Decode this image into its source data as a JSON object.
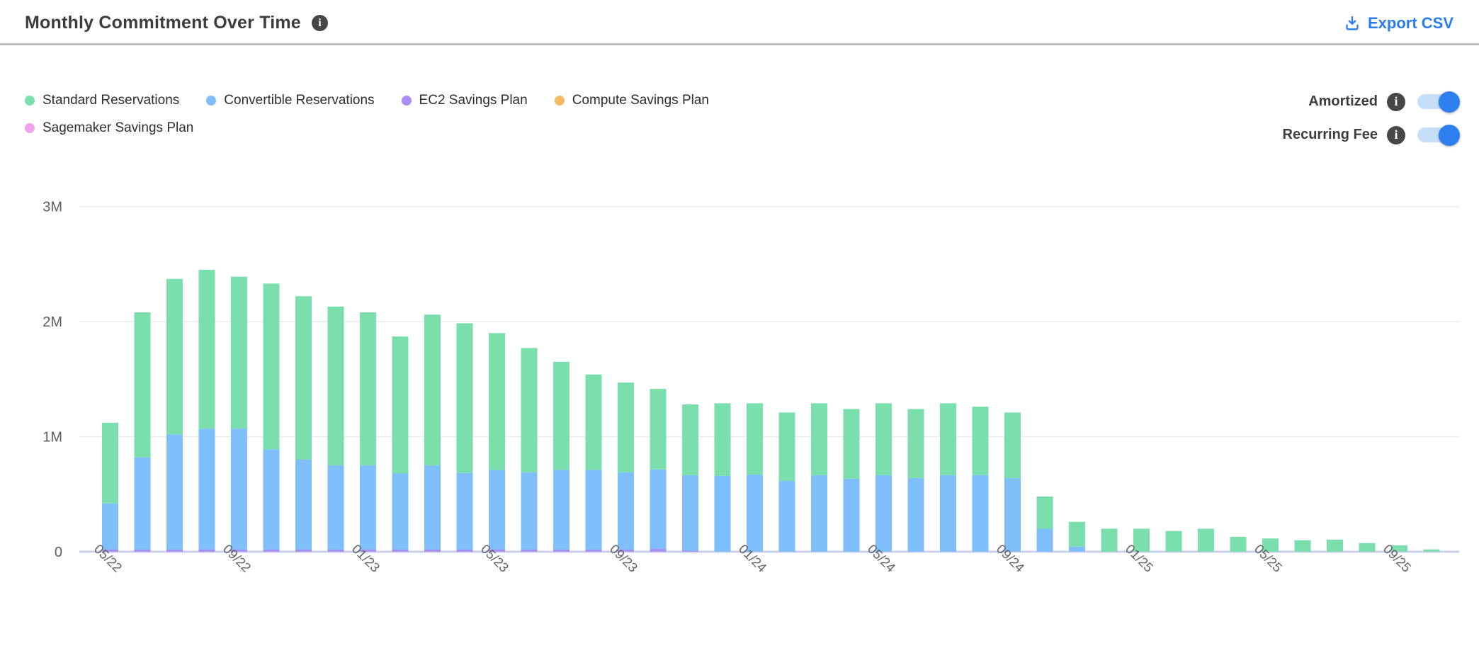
{
  "header": {
    "title": "Monthly Commitment Over Time",
    "export_label": "Export CSV"
  },
  "legend": {
    "items": [
      {
        "label": "Standard Reservations",
        "color": "#7adfac"
      },
      {
        "label": "Convertible Reservations",
        "color": "#7dbefb"
      },
      {
        "label": "EC2 Savings Plan",
        "color": "#a98ff3"
      },
      {
        "label": "Compute Savings Plan",
        "color": "#f6ba61"
      },
      {
        "label": "Sagemaker Savings Plan",
        "color": "#f0a3e8"
      }
    ]
  },
  "toggles": {
    "items": [
      {
        "label": "Amortized",
        "state": "on"
      },
      {
        "label": "Recurring Fee",
        "state": "on"
      }
    ]
  },
  "chart_data": {
    "type": "bar",
    "stacked": true,
    "title": "Monthly Commitment Over Time",
    "unit": "millions",
    "ylim": [
      0,
      3000000
    ],
    "grid": true,
    "yticks": [
      {
        "label": "0",
        "value": 0
      },
      {
        "label": "1M",
        "value": 1
      },
      {
        "label": "2M",
        "value": 2
      },
      {
        "label": "3M",
        "value": 3
      }
    ],
    "x_tick_every": 4,
    "categories": [
      "05/22",
      "06/22",
      "07/22",
      "08/22",
      "09/22",
      "10/22",
      "11/22",
      "12/22",
      "01/23",
      "02/23",
      "03/23",
      "04/23",
      "05/23",
      "06/23",
      "07/23",
      "08/23",
      "09/23",
      "10/23",
      "11/23",
      "12/23",
      "01/24",
      "02/24",
      "03/24",
      "04/24",
      "05/24",
      "06/24",
      "07/24",
      "08/24",
      "09/24",
      "10/24",
      "11/24",
      "12/24",
      "01/25",
      "02/25",
      "03/25",
      "04/25",
      "05/25",
      "06/25",
      "07/25",
      "08/25",
      "09/25",
      "10/25"
    ],
    "visible_x_labels": [
      "05/22",
      "09/22",
      "01/23",
      "05/23",
      "09/23",
      "01/24",
      "05/24",
      "09/24",
      "01/25",
      "05/25",
      "09/25"
    ],
    "series": [
      {
        "name": "EC2 Savings Plan",
        "color": "#a98ff3",
        "values": [
          0.02,
          0.02,
          0.02,
          0.02,
          0.02,
          0.02,
          0.02,
          0.02,
          0.02,
          0.02,
          0.02,
          0.02,
          0.02,
          0.02,
          0.02,
          0.02,
          0.02,
          0.025,
          0.01,
          0,
          0,
          0,
          0,
          0,
          0,
          0,
          0,
          0,
          0,
          0,
          0,
          0,
          0,
          0,
          0,
          0,
          0,
          0,
          0,
          0,
          0,
          0
        ]
      },
      {
        "name": "Convertible Reservations",
        "color": "#7dbefb",
        "values": [
          0.4,
          0.8,
          1.0,
          1.05,
          1.05,
          0.87,
          0.78,
          0.73,
          0.73,
          0.66,
          0.73,
          0.665,
          0.69,
          0.67,
          0.69,
          0.69,
          0.67,
          0.69,
          0.655,
          0.66,
          0.67,
          0.615,
          0.665,
          0.635,
          0.665,
          0.64,
          0.665,
          0.665,
          0.64,
          0.2,
          0.045,
          0,
          0,
          0,
          0,
          0,
          0,
          0,
          0,
          0,
          0,
          0
        ]
      },
      {
        "name": "Standard Reservations",
        "color": "#7adfac",
        "values": [
          0.7,
          1.26,
          1.35,
          1.38,
          1.32,
          1.44,
          1.42,
          1.38,
          1.33,
          1.19,
          1.31,
          1.3,
          1.19,
          1.08,
          0.94,
          0.83,
          0.78,
          0.7,
          0.615,
          0.63,
          0.62,
          0.595,
          0.625,
          0.605,
          0.625,
          0.6,
          0.625,
          0.595,
          0.57,
          0.28,
          0.215,
          0.2,
          0.2,
          0.18,
          0.2,
          0.13,
          0.115,
          0.1,
          0.105,
          0.075,
          0.055,
          0.02
        ]
      },
      {
        "name": "Compute Savings Plan",
        "color": "#f6ba61",
        "values": [
          0,
          0,
          0,
          0,
          0,
          0,
          0,
          0,
          0,
          0,
          0,
          0,
          0,
          0,
          0,
          0,
          0,
          0,
          0,
          0,
          0,
          0,
          0,
          0,
          0,
          0,
          0,
          0,
          0,
          0,
          0,
          0,
          0,
          0,
          0,
          0,
          0,
          0,
          0,
          0,
          0,
          0
        ]
      },
      {
        "name": "Sagemaker Savings Plan",
        "color": "#f0a3e8",
        "values": [
          0,
          0,
          0,
          0,
          0,
          0,
          0,
          0,
          0,
          0,
          0,
          0,
          0,
          0,
          0,
          0,
          0,
          0,
          0,
          0,
          0,
          0,
          0,
          0,
          0,
          0,
          0,
          0,
          0,
          0,
          0,
          0,
          0,
          0,
          0,
          0,
          0,
          0,
          0,
          0,
          0,
          0
        ]
      }
    ],
    "legend_position": "top-left",
    "colors": {
      "gridline": "#eaeaea",
      "baseline": "#c9cfe8",
      "axis_text": "#626262",
      "accent_blue": "#2b7bf3"
    }
  }
}
